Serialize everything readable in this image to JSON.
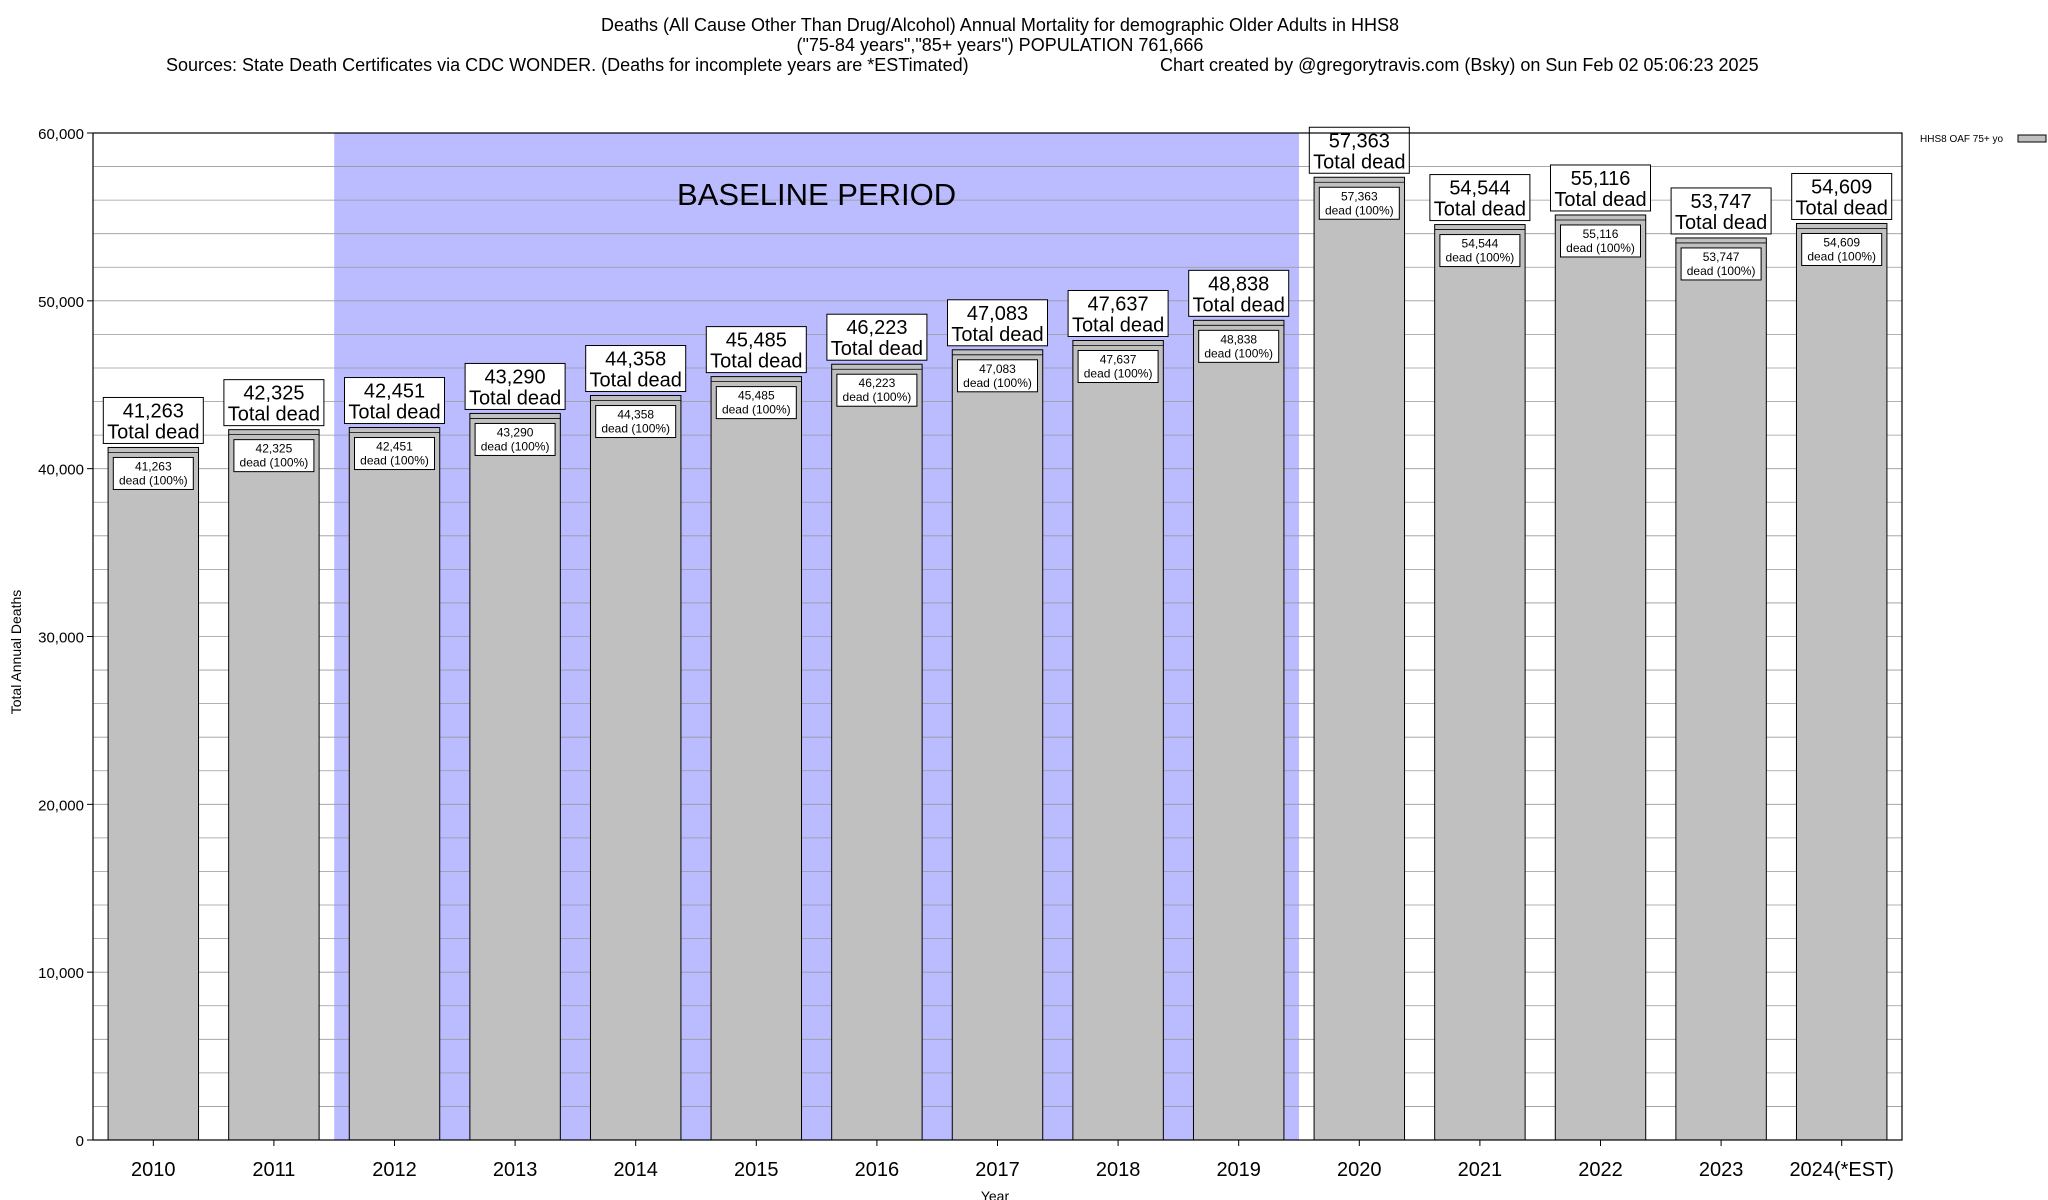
{
  "chart_data": {
    "type": "bar",
    "title_lines": [
      "Deaths (All Cause Other Than Drug/Alcohol) Annual Mortality for demographic Older Adults in HHS8",
      "(\"75-84 years\",\"85+ years\") POPULATION 761,666"
    ],
    "sources": "Sources: State Death Certificates via CDC WONDER. (Deaths for incomplete years are *ESTimated)",
    "credit": "Chart created by @gregorytravis.com (Bsky) on Sun Feb 02 05:06:23 2025",
    "xlabel": "Year",
    "ylabel": "Total Annual Deaths",
    "ylim": [
      0,
      60000
    ],
    "yticks": [
      0,
      10000,
      20000,
      30000,
      40000,
      50000,
      60000
    ],
    "ytick_labels": [
      "0",
      "10,000",
      "20,000",
      "30,000",
      "40,000",
      "50,000",
      "60,000"
    ],
    "grid": "horizontal",
    "legend": {
      "label": "HHS8 OAF 75+ yo",
      "placement": "top-right, outside plot"
    },
    "baseline_period": {
      "label": "BASELINE PERIOD",
      "start": "2012",
      "end": "2019",
      "color": "#bbbbff"
    },
    "bar_color": "#c0c0c0",
    "categories": [
      "2010",
      "2011",
      "2012",
      "2013",
      "2014",
      "2015",
      "2016",
      "2017",
      "2018",
      "2019",
      "2020",
      "2021",
      "2022",
      "2023",
      "2024(*EST)"
    ],
    "values": [
      41263,
      42325,
      42451,
      43290,
      44358,
      45485,
      46223,
      47083,
      47637,
      48838,
      57363,
      54544,
      55116,
      53747,
      54609
    ],
    "value_labels": [
      "41,263",
      "42,325",
      "42,451",
      "43,290",
      "44,358",
      "45,485",
      "46,223",
      "47,083",
      "47,637",
      "48,838",
      "57,363",
      "54,544",
      "55,116",
      "53,747",
      "54,609"
    ],
    "top_label_suffix": "Total dead",
    "inner_label_suffix": "dead (100%)"
  }
}
